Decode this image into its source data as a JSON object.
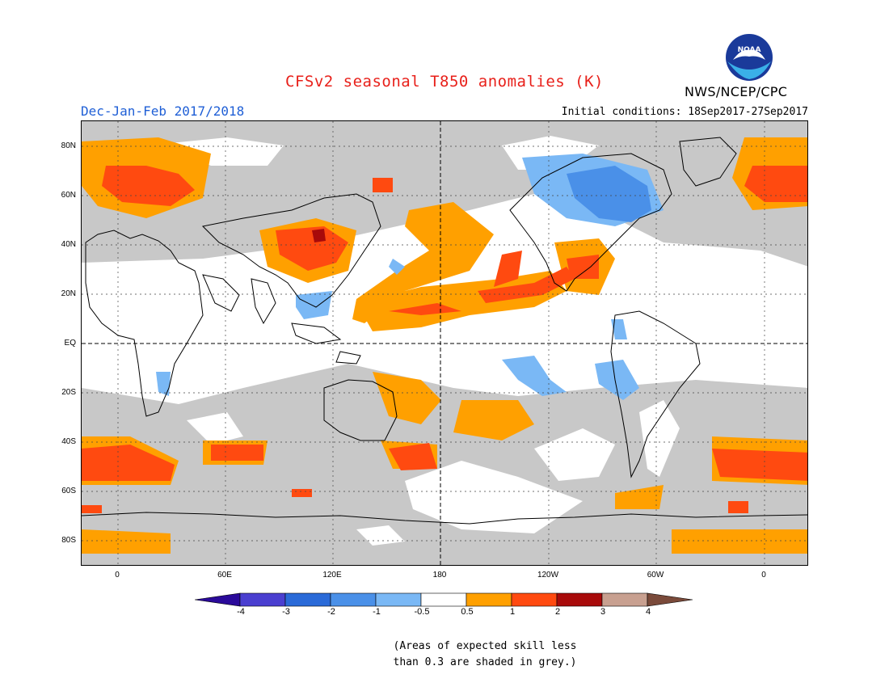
{
  "title": "CFSv2 seasonal T850 anomalies (K)",
  "season": "Dec-Jan-Feb 2017/2018",
  "initial_conditions": "Initial conditions: 18Sep2017-27Sep2017",
  "agency": "NWS/NCEP/CPC",
  "logo_text": "NOAA",
  "lat_labels": [
    "80N",
    "60N",
    "40N",
    "20N",
    "EQ",
    "20S",
    "40S",
    "60S",
    "80S"
  ],
  "lon_labels": [
    "0",
    "60E",
    "120E",
    "180",
    "120W",
    "60W",
    "0"
  ],
  "colorbar": {
    "ticks": [
      "-4",
      "-3",
      "-2",
      "-1",
      "-0.5",
      "0.5",
      "1",
      "2",
      "3",
      "4"
    ],
    "colors": [
      "#2a0a9a",
      "#4a3fd0",
      "#2a6ad8",
      "#4a90e8",
      "#7ab8f5",
      "#ffffff",
      "#ffa000",
      "#ff4a10",
      "#a80a0a",
      "#c8a090",
      "#7a4a3a"
    ]
  },
  "colors": {
    "grey_skill": "#c8c8c8",
    "warm_1": "#ffa000",
    "warm_2": "#ff4a10",
    "warm_3": "#a80a0a",
    "cool_1": "#7ab8f5",
    "cool_2": "#4a90e8"
  },
  "note_line1": "(Areas of expected skill less",
  "note_line2": "than 0.3 are shaded in grey.)"
}
